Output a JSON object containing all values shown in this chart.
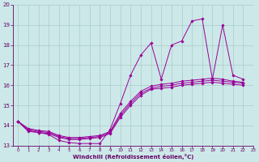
{
  "xlabel": "Windchill (Refroidissement éolien,°C)",
  "background_color": "#cce8e8",
  "line_color": "#990099",
  "grid_color": "#aacccc",
  "xlim": [
    -0.5,
    23
  ],
  "ylim": [
    13,
    20
  ],
  "xticks": [
    0,
    1,
    2,
    3,
    4,
    5,
    6,
    7,
    8,
    9,
    10,
    11,
    12,
    13,
    14,
    15,
    16,
    17,
    18,
    19,
    20,
    21,
    22,
    23
  ],
  "yticks": [
    13,
    14,
    15,
    16,
    17,
    18,
    19,
    20
  ],
  "line1_x": [
    0,
    1,
    2,
    3,
    4,
    5,
    6,
    7,
    8,
    9,
    10,
    11,
    12,
    13,
    14,
    15,
    16,
    17,
    18,
    19,
    20,
    21,
    22
  ],
  "line1_y": [
    14.2,
    13.7,
    13.65,
    13.55,
    13.25,
    13.15,
    13.1,
    13.1,
    13.1,
    13.8,
    15.1,
    16.5,
    17.5,
    18.1,
    16.3,
    18.0,
    18.2,
    19.2,
    19.3,
    16.3,
    19.0,
    16.5,
    16.3
  ],
  "line2_x": [
    0,
    1,
    2,
    3,
    4,
    5,
    6,
    7,
    8,
    9,
    10,
    11,
    12,
    13,
    14,
    15,
    16,
    17,
    18,
    19,
    20,
    21,
    22
  ],
  "line2_y": [
    14.2,
    13.75,
    13.65,
    13.6,
    13.4,
    13.3,
    13.3,
    13.35,
    13.4,
    13.6,
    14.4,
    15.0,
    15.5,
    15.8,
    15.85,
    15.9,
    16.0,
    16.05,
    16.1,
    16.15,
    16.1,
    16.05,
    16.0
  ],
  "line3_x": [
    0,
    1,
    2,
    3,
    4,
    5,
    6,
    7,
    8,
    9,
    10,
    11,
    12,
    13,
    14,
    15,
    16,
    17,
    18,
    19,
    20,
    21,
    22
  ],
  "line3_y": [
    14.2,
    13.8,
    13.7,
    13.65,
    13.45,
    13.35,
    13.35,
    13.4,
    13.45,
    13.65,
    14.5,
    15.1,
    15.6,
    15.85,
    15.95,
    16.0,
    16.1,
    16.15,
    16.2,
    16.25,
    16.2,
    16.15,
    16.1
  ],
  "line4_x": [
    0,
    1,
    2,
    3,
    4,
    5,
    6,
    7,
    8,
    9,
    10,
    11,
    12,
    13,
    14,
    15,
    16,
    17,
    18,
    19,
    20,
    21,
    22
  ],
  "line4_y": [
    14.2,
    13.85,
    13.75,
    13.7,
    13.5,
    13.4,
    13.4,
    13.45,
    13.5,
    13.7,
    14.6,
    15.2,
    15.7,
    15.95,
    16.05,
    16.1,
    16.2,
    16.25,
    16.3,
    16.35,
    16.3,
    16.2,
    16.15
  ]
}
